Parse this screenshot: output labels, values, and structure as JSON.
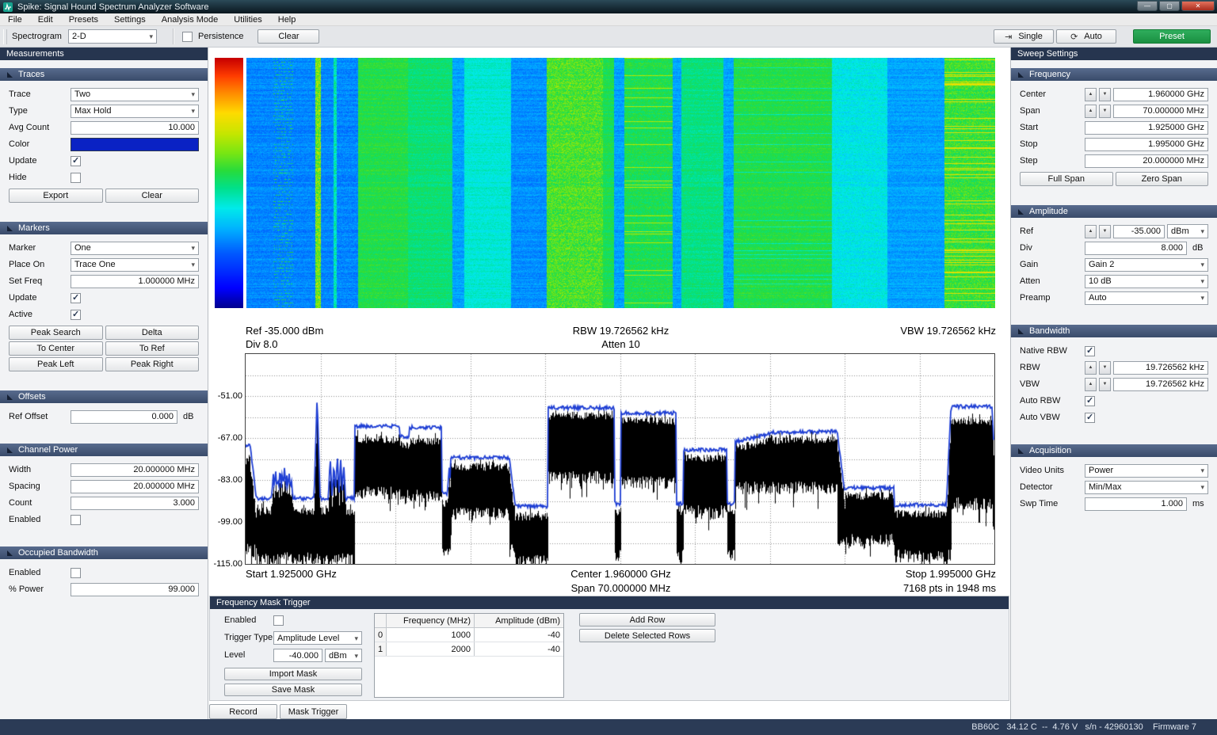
{
  "window": {
    "title": "Spike: Signal Hound Spectrum Analyzer Software"
  },
  "menu": {
    "items": [
      "File",
      "Edit",
      "Presets",
      "Settings",
      "Analysis Mode",
      "Utilities",
      "Help"
    ]
  },
  "toolbar": {
    "spectrogram_label": "Spectrogram",
    "spectrogram_value": "2-D",
    "persistence_label": "Persistence",
    "clear_label": "Clear",
    "single_label": "Single",
    "auto_label": "Auto",
    "preset_label": "Preset",
    "single_icon": "⇥",
    "auto_icon": "⟳"
  },
  "left_panel": {
    "header": "Measurements",
    "traces": {
      "title": "Traces",
      "trace_label": "Trace",
      "trace_value": "Two",
      "type_label": "Type",
      "type_value": "Max Hold",
      "avg_count_label": "Avg Count",
      "avg_count_value": "10.000",
      "color_label": "Color",
      "color_value": "#0a22c4",
      "update_label": "Update",
      "update_checked": true,
      "hide_label": "Hide",
      "hide_checked": false,
      "export_btn": "Export",
      "clear_btn": "Clear"
    },
    "markers": {
      "title": "Markers",
      "marker_label": "Marker",
      "marker_value": "One",
      "place_on_label": "Place On",
      "place_on_value": "Trace One",
      "set_freq_label": "Set Freq",
      "set_freq_value": "1.000000 MHz",
      "update_label": "Update",
      "update_checked": true,
      "active_label": "Active",
      "active_checked": true,
      "buttons": [
        "Peak Search",
        "Delta",
        "To Center",
        "To Ref",
        "Peak Left",
        "Peak Right"
      ]
    },
    "offsets": {
      "title": "Offsets",
      "ref_offset_label": "Ref Offset",
      "ref_offset_value": "0.000",
      "unit": "dB"
    },
    "channel_power": {
      "title": "Channel Power",
      "width_label": "Width",
      "width_value": "20.000000 MHz",
      "spacing_label": "Spacing",
      "spacing_value": "20.000000 MHz",
      "count_label": "Count",
      "count_value": "3.000",
      "enabled_label": "Enabled",
      "enabled_checked": false
    },
    "occupied_bandwidth": {
      "title": "Occupied Bandwidth",
      "enabled_label": "Enabled",
      "enabled_checked": false,
      "power_label": "% Power",
      "power_value": "99.000"
    }
  },
  "right_panel": {
    "header": "Sweep Settings",
    "frequency": {
      "title": "Frequency",
      "center_label": "Center",
      "center_value": "1.960000 GHz",
      "span_label": "Span",
      "span_value": "70.000000 MHz",
      "start_label": "Start",
      "start_value": "1.925000 GHz",
      "stop_label": "Stop",
      "stop_value": "1.995000 GHz",
      "step_label": "Step",
      "step_value": "20.000000 MHz",
      "full_span_btn": "Full Span",
      "zero_span_btn": "Zero Span"
    },
    "amplitude": {
      "title": "Amplitude",
      "ref_label": "Ref",
      "ref_value": "-35.000",
      "ref_unit": "dBm",
      "div_label": "Div",
      "div_value": "8.000",
      "div_unit": "dB",
      "gain_label": "Gain",
      "gain_value": "Gain 2",
      "atten_label": "Atten",
      "atten_value": "10 dB",
      "preamp_label": "Preamp",
      "preamp_value": "Auto"
    },
    "bandwidth": {
      "title": "Bandwidth",
      "native_rbw_label": "Native RBW",
      "native_rbw_checked": true,
      "rbw_label": "RBW",
      "rbw_value": "19.726562 kHz",
      "vbw_label": "VBW",
      "vbw_value": "19.726562 kHz",
      "auto_rbw_label": "Auto RBW",
      "auto_rbw_checked": true,
      "auto_vbw_label": "Auto VBW",
      "auto_vbw_checked": true
    },
    "acquisition": {
      "title": "Acquisition",
      "video_units_label": "Video Units",
      "video_units_value": "Power",
      "detector_label": "Detector",
      "detector_value": "Min/Max",
      "swp_time_label": "Swp Time",
      "swp_time_value": "1.000",
      "swp_time_unit": "ms"
    }
  },
  "plot": {
    "ref_line": "Ref -35.000 dBm",
    "div_line": "Div 8.0",
    "rbw_line": "RBW 19.726562 kHz",
    "atten_line": "Atten 10",
    "vbw_line": "VBW 19.726562 kHz",
    "y_ticks": [
      "-51.00",
      "-67.00",
      "-83.00",
      "-99.00",
      "-115.00"
    ],
    "start_label": "Start 1.925000 GHz",
    "center_label": "Center 1.960000 GHz",
    "span_label": "Span 70.000000 MHz",
    "stop_label": "Stop 1.995000 GHz",
    "points_label": "7168 pts in 1948 ms"
  },
  "fmt": {
    "title": "Frequency Mask Trigger",
    "enabled_label": "Enabled",
    "enabled_checked": false,
    "trigger_type_label": "Trigger Type",
    "trigger_type_value": "Amplitude Level",
    "level_label": "Level",
    "level_value": "-40.000",
    "level_unit": "dBm",
    "import_btn": "Import Mask",
    "save_btn": "Save Mask",
    "add_btn": "Add Row",
    "delete_btn": "Delete Selected Rows",
    "table": {
      "headers": [
        "Frequency (MHz)",
        "Amplitude (dBm)"
      ],
      "rows": [
        {
          "index": "0",
          "freq": "1000",
          "amp": "-40"
        },
        {
          "index": "1",
          "freq": "2000",
          "amp": "-40"
        }
      ]
    }
  },
  "bottom_buttons": {
    "record": "Record",
    "mask_trigger": "Mask Trigger"
  },
  "status_bar": {
    "text": "BB60C   34.12 C  --  4.76 V   s/n - 42960130    Firmware 7"
  },
  "chart_data": [
    {
      "type": "heatmap",
      "name": "spectrogram-waterfall",
      "x_start_ghz": 1.925,
      "x_stop_ghz": 1.995,
      "colormap": "jet",
      "colorbar_orientation": "vertical-red-top",
      "bands": [
        {
          "x0": 0.0,
          "x1": 0.092,
          "v": 0.27,
          "n": 0.03,
          "speckle": [
            0.035,
            0.062
          ]
        },
        {
          "x0": 0.092,
          "x1": 0.099,
          "v": 0.62,
          "n": 0.1
        },
        {
          "x0": 0.099,
          "x1": 0.116,
          "v": 0.27,
          "n": 0.03
        },
        {
          "x0": 0.116,
          "x1": 0.12,
          "v": 0.45,
          "n": 0.05
        },
        {
          "x0": 0.12,
          "x1": 0.149,
          "v": 0.27,
          "n": 0.035
        },
        {
          "x0": 0.149,
          "x1": 0.215,
          "v": 0.54,
          "n": 0.03
        },
        {
          "x0": 0.215,
          "x1": 0.275,
          "v": 0.5,
          "n": 0.03
        },
        {
          "x0": 0.275,
          "x1": 0.291,
          "v": 0.3,
          "n": 0.03
        },
        {
          "x0": 0.291,
          "x1": 0.353,
          "v": 0.42,
          "n": 0.03
        },
        {
          "x0": 0.353,
          "x1": 0.401,
          "v": 0.28,
          "n": 0.03
        },
        {
          "x0": 0.401,
          "x1": 0.476,
          "v": 0.58,
          "n": 0.07
        },
        {
          "x0": 0.476,
          "x1": 0.491,
          "v": 0.53,
          "n": 0.03
        },
        {
          "x0": 0.491,
          "x1": 0.504,
          "v": 0.3,
          "n": 0.03
        },
        {
          "x0": 0.504,
          "x1": 0.569,
          "v": 0.53,
          "n": 0.04,
          "streak_v": 0.68,
          "streak_p": 0.06
        },
        {
          "x0": 0.569,
          "x1": 0.58,
          "v": 0.3,
          "n": 0.03
        },
        {
          "x0": 0.58,
          "x1": 0.636,
          "v": 0.49,
          "n": 0.03
        },
        {
          "x0": 0.636,
          "x1": 0.65,
          "v": 0.3,
          "n": 0.03
        },
        {
          "x0": 0.65,
          "x1": 0.782,
          "v": 0.54,
          "n": 0.03,
          "streak_v": 0.44,
          "streak_p": 0.05
        },
        {
          "x0": 0.782,
          "x1": 0.856,
          "v": 0.4,
          "n": 0.04
        },
        {
          "x0": 0.856,
          "x1": 0.932,
          "v": 0.3,
          "n": 0.03
        },
        {
          "x0": 0.932,
          "x1": 1.0,
          "v": 0.56,
          "n": 0.06,
          "streak_v": 0.74,
          "streak_p": 0.12
        }
      ]
    },
    {
      "type": "line",
      "name": "spectrum-sweep",
      "ylim": [
        -115,
        -35
      ],
      "x_start_ghz": 1.925,
      "x_stop_ghz": 1.995,
      "grid_divisions": [
        10,
        10
      ],
      "series": [
        {
          "name": "trace-one-minmax",
          "color": "#000000"
        },
        {
          "name": "trace-two-maxhold",
          "color": "#1f3fd4"
        }
      ],
      "segment_format": [
        "x0",
        "x1",
        "maxhold_dbm_start",
        "maxhold_dbm_end",
        "minmax_top_dbm",
        "minmax_bottom_dbm"
      ],
      "segments": [
        [
          0.0,
          0.006,
          -70,
          -70,
          -76,
          -108
        ],
        [
          0.006,
          0.014,
          -70,
          -89,
          -78,
          -110
        ],
        [
          0.014,
          0.146,
          -90,
          -90,
          -95,
          -113
        ],
        [
          0.146,
          0.206,
          -62.5,
          -62.5,
          -67.5,
          -88
        ],
        [
          0.206,
          0.219,
          -66.5,
          -66.5,
          -70,
          -89
        ],
        [
          0.219,
          0.262,
          -63,
          -63,
          -68.5,
          -89
        ],
        [
          0.262,
          0.274,
          -88,
          -88,
          -92,
          -110
        ],
        [
          0.274,
          0.352,
          -74.5,
          -74.5,
          -78,
          -96
        ],
        [
          0.352,
          0.36,
          -74.5,
          -92,
          -80,
          -110
        ],
        [
          0.36,
          0.404,
          -93,
          -93,
          -97,
          -114
        ],
        [
          0.404,
          0.493,
          -55.5,
          -55.5,
          -58.5,
          -82
        ],
        [
          0.493,
          0.501,
          -92,
          -92,
          -95,
          -112
        ],
        [
          0.501,
          0.575,
          -57.5,
          -57.5,
          -60.5,
          -84
        ],
        [
          0.575,
          0.585,
          -92,
          -92,
          -95,
          -112
        ],
        [
          0.585,
          0.643,
          -71.5,
          -71.5,
          -74.5,
          -95
        ],
        [
          0.643,
          0.653,
          -92,
          -92,
          -95,
          -112
        ],
        [
          0.653,
          0.7,
          -68.5,
          -65.5,
          -71,
          -86
        ],
        [
          0.7,
          0.79,
          -65,
          -64.5,
          -68,
          -86
        ],
        [
          0.79,
          0.8,
          -64.5,
          -87,
          -70,
          -106
        ],
        [
          0.8,
          0.866,
          -86,
          -86,
          -89,
          -106
        ],
        [
          0.866,
          0.936,
          -92.5,
          -92.5,
          -96,
          -112
        ],
        [
          0.936,
          0.942,
          -92.5,
          -55.5,
          -97,
          -112
        ],
        [
          0.942,
          0.997,
          -55,
          -55,
          -61,
          -92
        ],
        [
          0.997,
          1.0,
          -55,
          -75,
          -61,
          -100
        ]
      ],
      "spikes": [
        [
          0.0955,
          -51.5
        ],
        [
          0.037,
          -81
        ],
        [
          0.04,
          -79
        ],
        [
          0.043,
          -82
        ],
        [
          0.046,
          -78.5
        ],
        [
          0.049,
          -80
        ],
        [
          0.052,
          -78
        ],
        [
          0.055,
          -81
        ],
        [
          0.058,
          -79.5
        ],
        [
          0.061,
          -83
        ],
        [
          0.113,
          -74
        ],
        [
          0.118,
          -76.5
        ],
        [
          0.1225,
          -73
        ],
        [
          0.127,
          -75
        ],
        [
          0.131,
          -77
        ],
        [
          0.272,
          -78
        ]
      ]
    }
  ]
}
